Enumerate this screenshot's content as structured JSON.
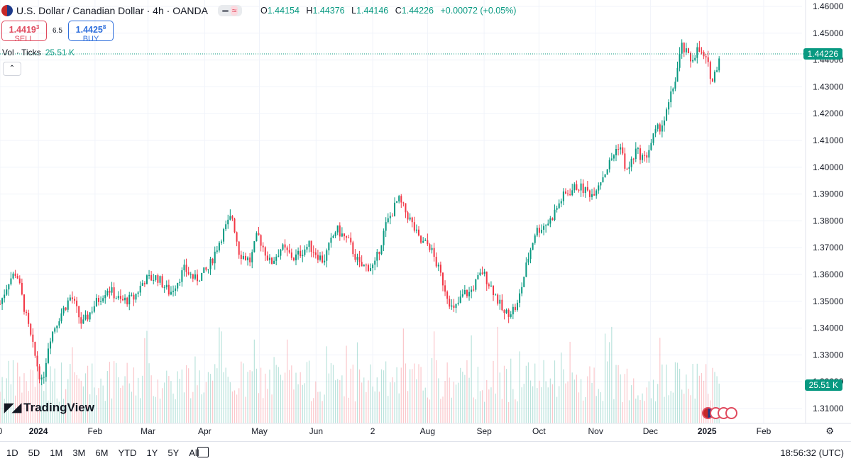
{
  "header": {
    "symbol_title": "U.S. Dollar / Canadian Dollar · 4h · OANDA",
    "ohlc": {
      "open_label": "O",
      "open": "1.44154",
      "high_label": "H",
      "high": "1.44376",
      "low_label": "L",
      "low": "1.44146",
      "close_label": "C",
      "close": "1.44226",
      "change": "+0.00072 (+0.05%)"
    }
  },
  "trade": {
    "sell_price": "1.4419",
    "sell_sup": "3",
    "sell_label": "SELL",
    "spread": "6.5",
    "buy_price": "1.4425",
    "buy_sup": "8",
    "buy_label": "BUY"
  },
  "volume_legend": {
    "label": "Vol · Ticks",
    "value": "25.51 K"
  },
  "price_tag": "1.44226",
  "volume_tag": "25.51 K",
  "watermark": "TradingView",
  "timeframes": [
    "1D",
    "5D",
    "1M",
    "3M",
    "6M",
    "YTD",
    "1Y",
    "5Y",
    "All"
  ],
  "clock": "18:56:32 (UTC)",
  "colors": {
    "up": "#089981",
    "down": "#f23645",
    "grid": "#f0f3fa",
    "axis_text": "#131722"
  },
  "chart_data": {
    "type": "candlestick",
    "title": "U.S. Dollar / Canadian Dollar · 4h · OANDA",
    "ylim": [
      1.305,
      1.462
    ],
    "y_ticks": [
      "1.31000",
      "1.32000",
      "1.33000",
      "1.34000",
      "1.35000",
      "1.36000",
      "1.37000",
      "1.38000",
      "1.39000",
      "1.40000",
      "1.41000",
      "1.42000",
      "1.43000",
      "1.44000",
      "1.45000",
      "1.46000"
    ],
    "x_ticks": [
      {
        "label": "0",
        "day": -21
      },
      {
        "label": "2024",
        "day": 0
      },
      {
        "label": "Feb",
        "day": 31
      },
      {
        "label": "Mar",
        "day": 60
      },
      {
        "label": "Apr",
        "day": 91
      },
      {
        "label": "May",
        "day": 121
      },
      {
        "label": "Jun",
        "day": 152
      },
      {
        "label": "2",
        "day": 183
      },
      {
        "label": "Aug",
        "day": 213
      },
      {
        "label": "Sep",
        "day": 244
      },
      {
        "label": "Oct",
        "day": 274
      },
      {
        "label": "Nov",
        "day": 305
      },
      {
        "label": "Dec",
        "day": 335
      },
      {
        "label": "2025",
        "day": 366
      },
      {
        "label": "Feb",
        "day": 397
      }
    ],
    "xlim_days": [
      -21,
      451
    ],
    "path_days": [
      -21,
      -16,
      -12,
      -6,
      -2,
      2,
      6,
      12,
      18,
      24,
      31,
      38,
      45,
      52,
      58,
      65,
      72,
      80,
      86,
      93,
      100,
      106,
      110,
      116,
      120,
      127,
      133,
      140,
      148,
      156,
      163,
      170,
      176,
      184,
      190,
      197,
      203,
      209,
      214,
      220,
      227,
      233,
      236,
      243,
      249,
      255,
      262,
      268,
      272,
      280,
      287,
      295,
      303,
      310,
      318,
      322,
      327,
      332,
      337,
      343,
      349,
      352,
      357,
      361,
      366,
      369,
      373
    ],
    "path_close": [
      1.349,
      1.358,
      1.361,
      1.342,
      1.33,
      1.319,
      1.336,
      1.345,
      1.352,
      1.341,
      1.349,
      1.355,
      1.35,
      1.351,
      1.358,
      1.359,
      1.353,
      1.362,
      1.358,
      1.362,
      1.374,
      1.382,
      1.368,
      1.365,
      1.375,
      1.364,
      1.37,
      1.366,
      1.371,
      1.365,
      1.377,
      1.372,
      1.363,
      1.363,
      1.378,
      1.388,
      1.381,
      1.372,
      1.371,
      1.36,
      1.346,
      1.353,
      1.353,
      1.361,
      1.354,
      1.345,
      1.348,
      1.366,
      1.376,
      1.38,
      1.389,
      1.393,
      1.39,
      1.398,
      1.409,
      1.398,
      1.406,
      1.403,
      1.412,
      1.418,
      1.434,
      1.445,
      1.44,
      1.444,
      1.439,
      1.432,
      1.442
    ],
    "last_close": 1.44226
  }
}
